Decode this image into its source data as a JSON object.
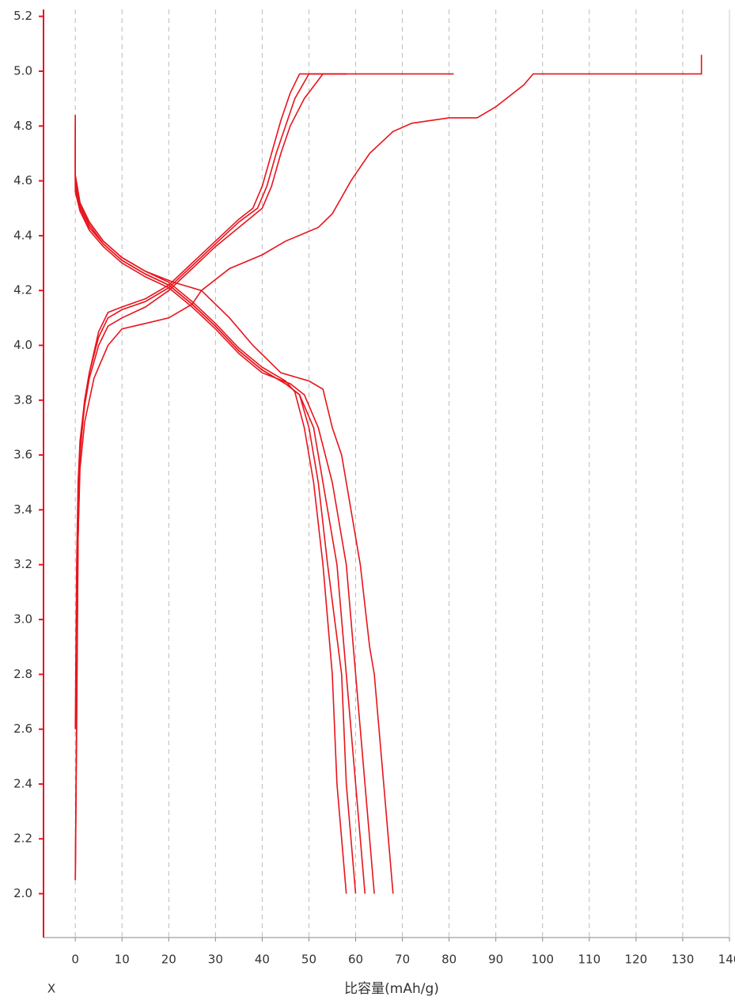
{
  "chart_data": {
    "type": "line",
    "x_label": "比容量(mAh/g)",
    "corner_label": "X",
    "color": "#e8141c",
    "grid": true,
    "xlim": [
      -6.8,
      140
    ],
    "xticks": [
      0,
      10,
      20,
      30,
      40,
      50,
      60,
      70,
      80,
      90,
      100,
      110,
      120,
      130,
      140
    ],
    "ylim": [
      1.84,
      5.225
    ],
    "yticks": [
      {
        "value": 2,
        "label": "2.0"
      },
      2.2,
      2.4,
      2.6,
      2.8,
      {
        "value": 3,
        "label": "3.0"
      },
      3.2,
      3.4,
      3.6,
      3.8,
      {
        "value": 4,
        "label": "4.0"
      },
      4.2,
      4.4,
      4.6,
      4.8,
      {
        "value": 5,
        "label": "5.0"
      },
      5.2
    ],
    "series": [
      {
        "x": [
          0,
          0.3,
          0.6,
          1,
          2,
          4,
          7,
          10,
          15,
          20,
          25,
          27,
          33,
          40,
          45,
          52,
          55,
          59,
          63,
          68,
          72,
          80,
          86,
          90,
          96,
          98,
          134,
          134
        ],
        "values": [
          2.05,
          2.6,
          3.3,
          3.55,
          3.72,
          3.88,
          4.0,
          4.06,
          4.08,
          4.1,
          4.15,
          4.2,
          4.28,
          4.33,
          4.38,
          4.43,
          4.48,
          4.6,
          4.7,
          4.78,
          4.81,
          4.83,
          4.83,
          4.87,
          4.95,
          4.99,
          4.99,
          5.06
        ]
      },
      {
        "x": [
          0,
          0.3,
          0.6,
          1,
          2,
          3,
          5,
          7,
          10,
          15,
          20,
          25,
          30,
          35,
          38,
          40,
          42,
          44,
          46,
          48,
          81
        ],
        "values": [
          2.05,
          2.7,
          3.3,
          3.6,
          3.8,
          3.9,
          4.05,
          4.12,
          4.14,
          4.17,
          4.22,
          4.3,
          4.38,
          4.46,
          4.5,
          4.58,
          4.7,
          4.82,
          4.92,
          4.99,
          4.99
        ]
      },
      {
        "x": [
          0,
          0.3,
          0.6,
          1,
          2,
          3,
          5,
          7,
          10,
          15,
          20,
          25,
          30,
          35,
          39,
          41,
          43,
          45,
          47,
          50,
          58
        ],
        "values": [
          2.6,
          3.2,
          3.5,
          3.65,
          3.8,
          3.9,
          4.03,
          4.1,
          4.13,
          4.16,
          4.21,
          4.29,
          4.37,
          4.45,
          4.5,
          4.58,
          4.7,
          4.8,
          4.9,
          4.99,
          4.99
        ]
      },
      {
        "x": [
          0.5,
          0.8,
          1,
          1.5,
          2,
          3,
          5,
          7,
          10,
          15,
          20,
          25,
          30,
          35,
          40,
          42,
          44,
          46,
          49,
          53,
          58
        ],
        "values": [
          3.2,
          3.5,
          3.6,
          3.7,
          3.78,
          3.88,
          4.0,
          4.07,
          4.1,
          4.14,
          4.2,
          4.28,
          4.36,
          4.43,
          4.5,
          4.58,
          4.7,
          4.8,
          4.9,
          4.99,
          4.99
        ]
      },
      {
        "x": [
          0,
          0,
          1,
          3,
          6,
          10,
          15,
          21,
          27,
          33,
          38,
          44,
          50,
          53,
          55,
          57,
          59,
          61,
          63,
          64,
          66,
          68
        ],
        "values": [
          4.84,
          4.62,
          4.52,
          4.45,
          4.38,
          4.32,
          4.27,
          4.23,
          4.2,
          4.1,
          4.0,
          3.9,
          3.87,
          3.84,
          3.7,
          3.6,
          3.4,
          3.2,
          2.9,
          2.8,
          2.4,
          2.0
        ]
      },
      {
        "x": [
          0,
          0,
          1,
          3,
          6,
          10,
          15,
          20,
          25,
          30,
          35,
          40,
          45,
          47,
          49,
          51,
          53,
          55,
          56,
          58
        ],
        "values": [
          4.84,
          4.62,
          4.52,
          4.45,
          4.38,
          4.32,
          4.27,
          4.23,
          4.16,
          4.08,
          3.99,
          3.92,
          3.87,
          3.83,
          3.7,
          3.5,
          3.2,
          2.8,
          2.4,
          2.0
        ]
      },
      {
        "x": [
          0,
          0,
          1,
          3,
          6,
          10,
          15,
          20,
          25,
          30,
          35,
          40,
          45,
          48,
          50,
          52,
          54,
          57,
          58,
          60
        ],
        "values": [
          4.8,
          4.6,
          4.51,
          4.44,
          4.37,
          4.31,
          4.26,
          4.22,
          4.15,
          4.07,
          3.98,
          3.91,
          3.86,
          3.82,
          3.7,
          3.5,
          3.2,
          2.8,
          2.4,
          2.0
        ]
      },
      {
        "x": [
          0,
          0,
          1,
          3,
          6,
          10,
          15,
          20,
          25,
          30,
          35,
          40,
          45,
          48,
          51,
          53,
          56,
          58,
          60,
          62
        ],
        "values": [
          4.75,
          4.58,
          4.5,
          4.43,
          4.37,
          4.31,
          4.26,
          4.22,
          4.15,
          4.07,
          3.98,
          3.91,
          3.86,
          3.82,
          3.7,
          3.5,
          3.2,
          2.8,
          2.4,
          2.0
        ]
      },
      {
        "x": [
          0,
          0,
          1,
          3,
          6,
          10,
          15,
          20,
          25,
          30,
          35,
          40,
          46,
          49,
          52,
          55,
          58,
          60,
          62,
          64
        ],
        "values": [
          4.7,
          4.56,
          4.49,
          4.42,
          4.36,
          4.3,
          4.25,
          4.21,
          4.14,
          4.06,
          3.97,
          3.9,
          3.86,
          3.82,
          3.7,
          3.5,
          3.2,
          2.8,
          2.4,
          2.0
        ]
      }
    ]
  }
}
